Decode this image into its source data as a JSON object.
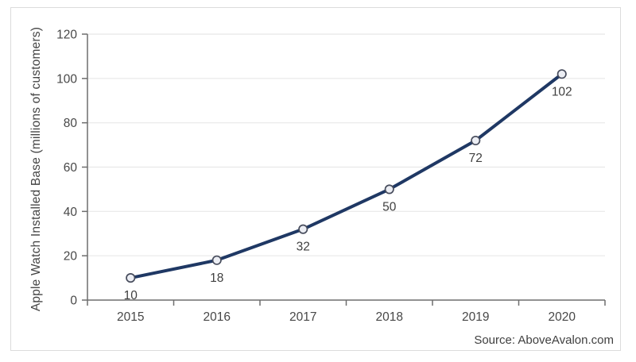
{
  "chart_data": {
    "type": "line",
    "categories": [
      "2015",
      "2016",
      "2017",
      "2018",
      "2019",
      "2020"
    ],
    "series": [
      {
        "name": "Apple Watch Installed Base",
        "values": [
          10,
          18,
          32,
          50,
          72,
          102
        ]
      }
    ],
    "data_labels": [
      "10",
      "18",
      "32",
      "50",
      "72",
      "102"
    ],
    "title": "",
    "xlabel": "",
    "ylabel": "Apple Watch Installed Base (millions of customers)",
    "ylim": [
      0,
      120
    ],
    "yticks": [
      0,
      20,
      40,
      60,
      80,
      100,
      120
    ],
    "grid": "horizontal",
    "legend": "none",
    "colors": {
      "line": "#1f3864",
      "marker_fill": "#eceef4",
      "marker_stroke": "#474c5c",
      "gridline": "#e8e8e8",
      "axis": "#6e6e6e",
      "tick_text": "#474747",
      "label_text": "#3f3f3f"
    }
  },
  "footer": {
    "source_label": "Source: AboveAvalon.com"
  }
}
